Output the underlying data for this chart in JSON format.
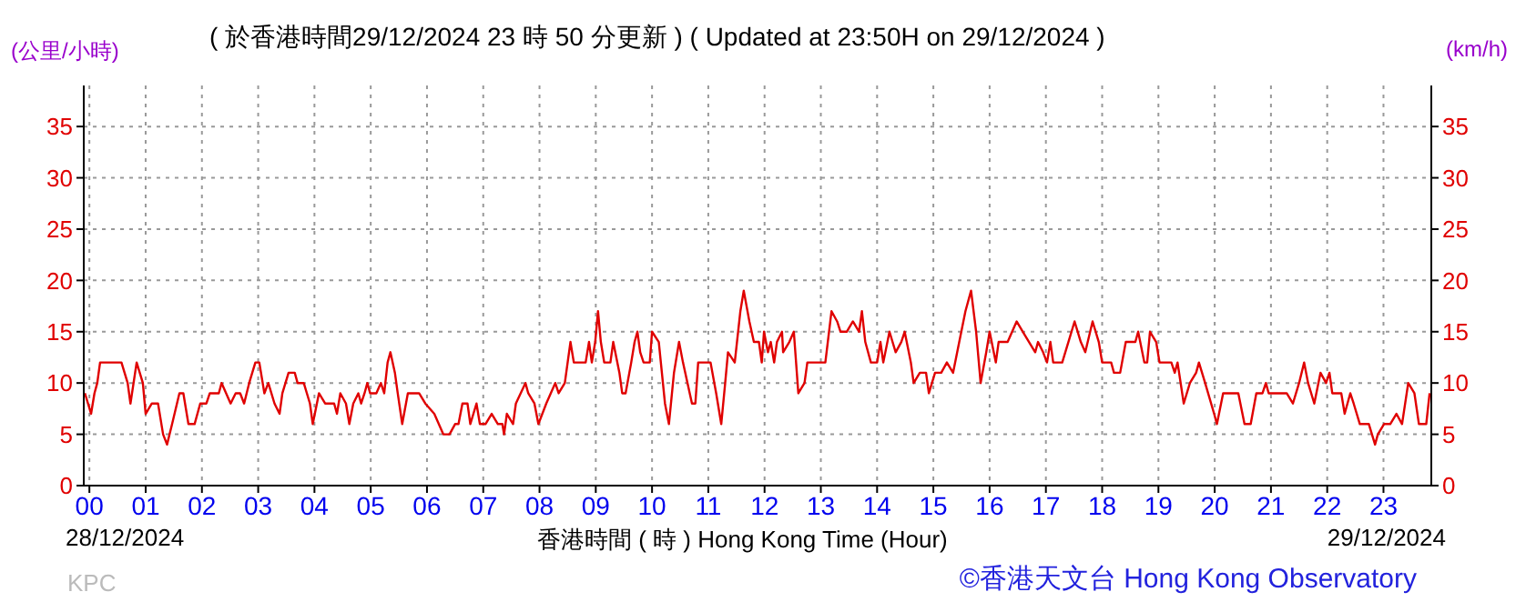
{
  "chart_data": {
    "type": "line",
    "title": "( 於香港時間29/12/2024 23 時 50 分更新 ) ( Updated at 23:50H on 29/12/2024 )",
    "ylabel": "(公里/小時)",
    "y2label": "(km/h)",
    "xlabel": "香港時間 ( 時 ) Hong Kong Time (Hour)",
    "annotations": [
      "28/12/2024",
      "29/12/2024",
      "KPC",
      "©香港天文台 Hong Kong Observatory"
    ],
    "x": [
      -0.08,
      0.03,
      0.09,
      0.14,
      0.19,
      0.57,
      0.68,
      0.73,
      0.84,
      0.95,
      1.0,
      1.11,
      1.22,
      1.31,
      1.38,
      1.47,
      1.6,
      1.67,
      1.76,
      1.87,
      1.97,
      2.08,
      2.14,
      2.3,
      2.35,
      2.51,
      2.6,
      2.68,
      2.75,
      2.84,
      2.95,
      3.02,
      3.11,
      3.18,
      3.29,
      3.38,
      3.43,
      3.54,
      3.65,
      3.7,
      3.81,
      3.92,
      3.97,
      4.08,
      4.19,
      4.35,
      4.4,
      4.46,
      4.56,
      4.62,
      4.69,
      4.78,
      4.83,
      4.89,
      4.94,
      4.99,
      5.1,
      5.18,
      5.24,
      5.3,
      5.35,
      5.43,
      5.48,
      5.56,
      5.66,
      5.86,
      5.97,
      6.13,
      6.29,
      6.4,
      6.5,
      6.56,
      6.63,
      6.72,
      6.77,
      6.88,
      6.94,
      7.04,
      7.15,
      7.26,
      7.34,
      7.37,
      7.42,
      7.53,
      7.58,
      7.75,
      7.8,
      7.91,
      7.98,
      8.12,
      8.28,
      8.34,
      8.45,
      8.5,
      8.55,
      8.61,
      8.82,
      8.88,
      8.93,
      8.99,
      9.04,
      9.09,
      9.15,
      9.26,
      9.31,
      9.42,
      9.47,
      9.53,
      9.63,
      9.69,
      9.74,
      9.79,
      9.85,
      9.96,
      10.0,
      10.12,
      10.23,
      10.3,
      10.39,
      10.48,
      10.55,
      10.63,
      10.71,
      10.77,
      10.82,
      10.93,
      11.04,
      11.14,
      11.23,
      11.3,
      11.35,
      11.47,
      11.57,
      11.63,
      11.73,
      11.81,
      11.9,
      11.95,
      11.99,
      12.06,
      12.11,
      12.17,
      12.22,
      12.31,
      12.33,
      12.44,
      12.52,
      12.6,
      12.71,
      12.76,
      13.08,
      13.19,
      13.29,
      13.35,
      13.46,
      13.57,
      13.68,
      13.73,
      13.79,
      13.89,
      14.0,
      14.06,
      14.11,
      14.22,
      14.33,
      14.43,
      14.49,
      14.6,
      14.65,
      14.76,
      14.87,
      14.92,
      15.03,
      15.14,
      15.24,
      15.35,
      15.46,
      15.57,
      15.67,
      15.76,
      15.84,
      15.94,
      16.0,
      16.11,
      16.16,
      16.32,
      16.48,
      16.59,
      16.7,
      16.81,
      16.86,
      16.95,
      17.02,
      17.08,
      17.13,
      17.29,
      17.4,
      17.51,
      17.62,
      17.7,
      17.83,
      17.94,
      18.0,
      18.16,
      18.21,
      18.32,
      18.42,
      18.59,
      18.64,
      18.75,
      18.8,
      18.85,
      18.96,
      19.02,
      19.23,
      19.29,
      19.34,
      19.45,
      19.56,
      19.67,
      19.72,
      19.83,
      19.99,
      20.04,
      20.15,
      20.31,
      20.42,
      20.53,
      20.64,
      20.74,
      20.85,
      20.91,
      20.96,
      21.28,
      21.39,
      21.5,
      21.59,
      21.66,
      21.77,
      21.88,
      21.98,
      22.04,
      22.09,
      22.25,
      22.31,
      22.41,
      22.47,
      22.58,
      22.74,
      22.85,
      22.9,
      23.01,
      23.12,
      23.23,
      23.33,
      23.44,
      23.55,
      23.63,
      23.76,
      23.82
    ],
    "series": [
      {
        "color": "#e00000",
        "values": [
          9,
          7,
          9,
          10,
          12,
          12,
          10,
          8,
          12,
          10,
          7,
          8,
          8,
          5,
          4,
          6,
          9,
          9,
          6,
          6,
          8,
          8,
          9,
          9,
          10,
          8,
          9,
          9,
          8,
          10,
          12,
          12,
          9,
          10,
          8,
          7,
          9,
          11,
          11,
          10,
          10,
          8,
          6,
          9,
          8,
          8,
          7,
          9,
          8,
          6,
          8,
          9,
          8,
          9,
          10,
          9,
          9,
          10,
          9,
          12,
          13,
          11,
          9,
          6,
          9,
          9,
          8,
          7,
          5,
          5,
          6,
          6,
          8,
          8,
          6,
          8,
          6,
          6,
          7,
          6,
          6,
          5,
          7,
          6,
          8,
          10,
          9,
          8,
          6,
          8,
          10,
          9,
          10,
          12,
          14,
          12,
          12,
          14,
          12,
          14,
          17,
          14,
          12,
          12,
          14,
          11,
          9,
          9,
          12,
          14,
          15,
          13,
          12,
          12,
          15,
          14,
          8,
          6,
          11,
          14,
          12,
          10,
          8,
          8,
          12,
          12,
          12,
          9,
          6,
          10,
          13,
          12,
          17,
          19,
          16,
          14,
          14,
          12,
          15,
          13,
          14,
          12,
          14,
          15,
          13,
          14,
          15,
          9,
          10,
          12,
          12,
          17,
          16,
          15,
          15,
          16,
          15,
          17,
          14,
          12,
          12,
          14,
          12,
          15,
          13,
          14,
          15,
          12,
          10,
          11,
          11,
          9,
          11,
          11,
          12,
          11,
          14,
          17,
          19,
          15,
          10,
          13,
          15,
          12,
          14,
          14,
          16,
          15,
          14,
          13,
          14,
          13,
          12,
          14,
          12,
          12,
          14,
          16,
          14,
          13,
          16,
          14,
          12,
          12,
          11,
          11,
          14,
          14,
          15,
          12,
          12,
          15,
          14,
          12,
          12,
          11,
          12,
          8,
          10,
          11,
          12,
          10,
          7,
          6,
          9,
          9,
          9,
          6,
          6,
          9,
          9,
          10,
          9,
          9,
          8,
          10,
          12,
          10,
          8,
          11,
          10,
          11,
          9,
          9,
          7,
          9,
          8,
          6,
          6,
          4,
          5,
          6,
          6,
          7,
          6,
          10,
          9,
          6,
          6,
          9
        ]
      }
    ],
    "xlim": [
      -0.1,
      23.85
    ],
    "xticks": [
      {
        "value": 0,
        "label": "00"
      },
      {
        "value": 1,
        "label": "01"
      },
      {
        "value": 2,
        "label": "02"
      },
      {
        "value": 3,
        "label": "03"
      },
      {
        "value": 4,
        "label": "04"
      },
      {
        "value": 5,
        "label": "05"
      },
      {
        "value": 6,
        "label": "06"
      },
      {
        "value": 7,
        "label": "07"
      },
      {
        "value": 8,
        "label": "08"
      },
      {
        "value": 9,
        "label": "09"
      },
      10,
      11,
      12,
      13,
      14,
      15,
      16,
      17,
      18,
      19,
      20,
      21,
      22,
      23
    ],
    "ylim": [
      0,
      39
    ],
    "yticks": [
      0,
      5,
      10,
      15,
      20,
      25,
      30,
      35
    ],
    "y2lim": [
      0,
      39
    ],
    "y2ticks": [
      0,
      5,
      10,
      15,
      20,
      25,
      30,
      35
    ],
    "grid": true,
    "marker": "none",
    "line_style": "solid"
  }
}
